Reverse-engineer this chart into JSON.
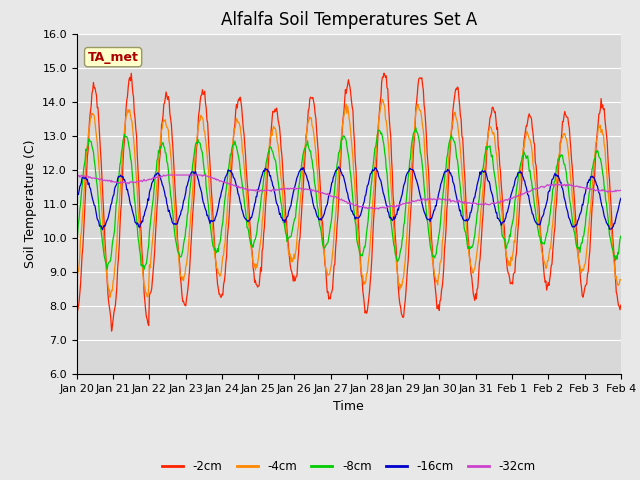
{
  "title": "Alfalfa Soil Temperatures Set A",
  "xlabel": "Time",
  "ylabel": "Soil Temperature (C)",
  "ylim": [
    6.0,
    16.0
  ],
  "yticks": [
    6.0,
    7.0,
    8.0,
    9.0,
    10.0,
    11.0,
    12.0,
    13.0,
    14.0,
    15.0,
    16.0
  ],
  "xtick_labels": [
    "Jan 20",
    "Jan 21",
    "Jan 22",
    "Jan 23",
    "Jan 24",
    "Jan 25",
    "Jan 26",
    "Jan 27",
    "Jan 28",
    "Jan 29",
    "Jan 30",
    "Jan 31",
    "Feb 1",
    "Feb 2",
    "Feb 3",
    "Feb 4"
  ],
  "n_days": 15,
  "points_per_day": 48,
  "colors": {
    "-2cm": "#ff2200",
    "-4cm": "#ff8800",
    "-8cm": "#00cc00",
    "-16cm": "#0000cc",
    "-32cm": "#cc44cc"
  },
  "legend_labels": [
    "-2cm",
    "-4cm",
    "-8cm",
    "-16cm",
    "-32cm"
  ],
  "annotation_text": "TA_met",
  "annotation_color": "#aa0000",
  "annotation_bg": "#ffffcc",
  "background_color": "#e8e8e8",
  "plot_bg_color": "#d8d8d8",
  "title_fontsize": 12,
  "axis_fontsize": 9,
  "tick_fontsize": 8
}
